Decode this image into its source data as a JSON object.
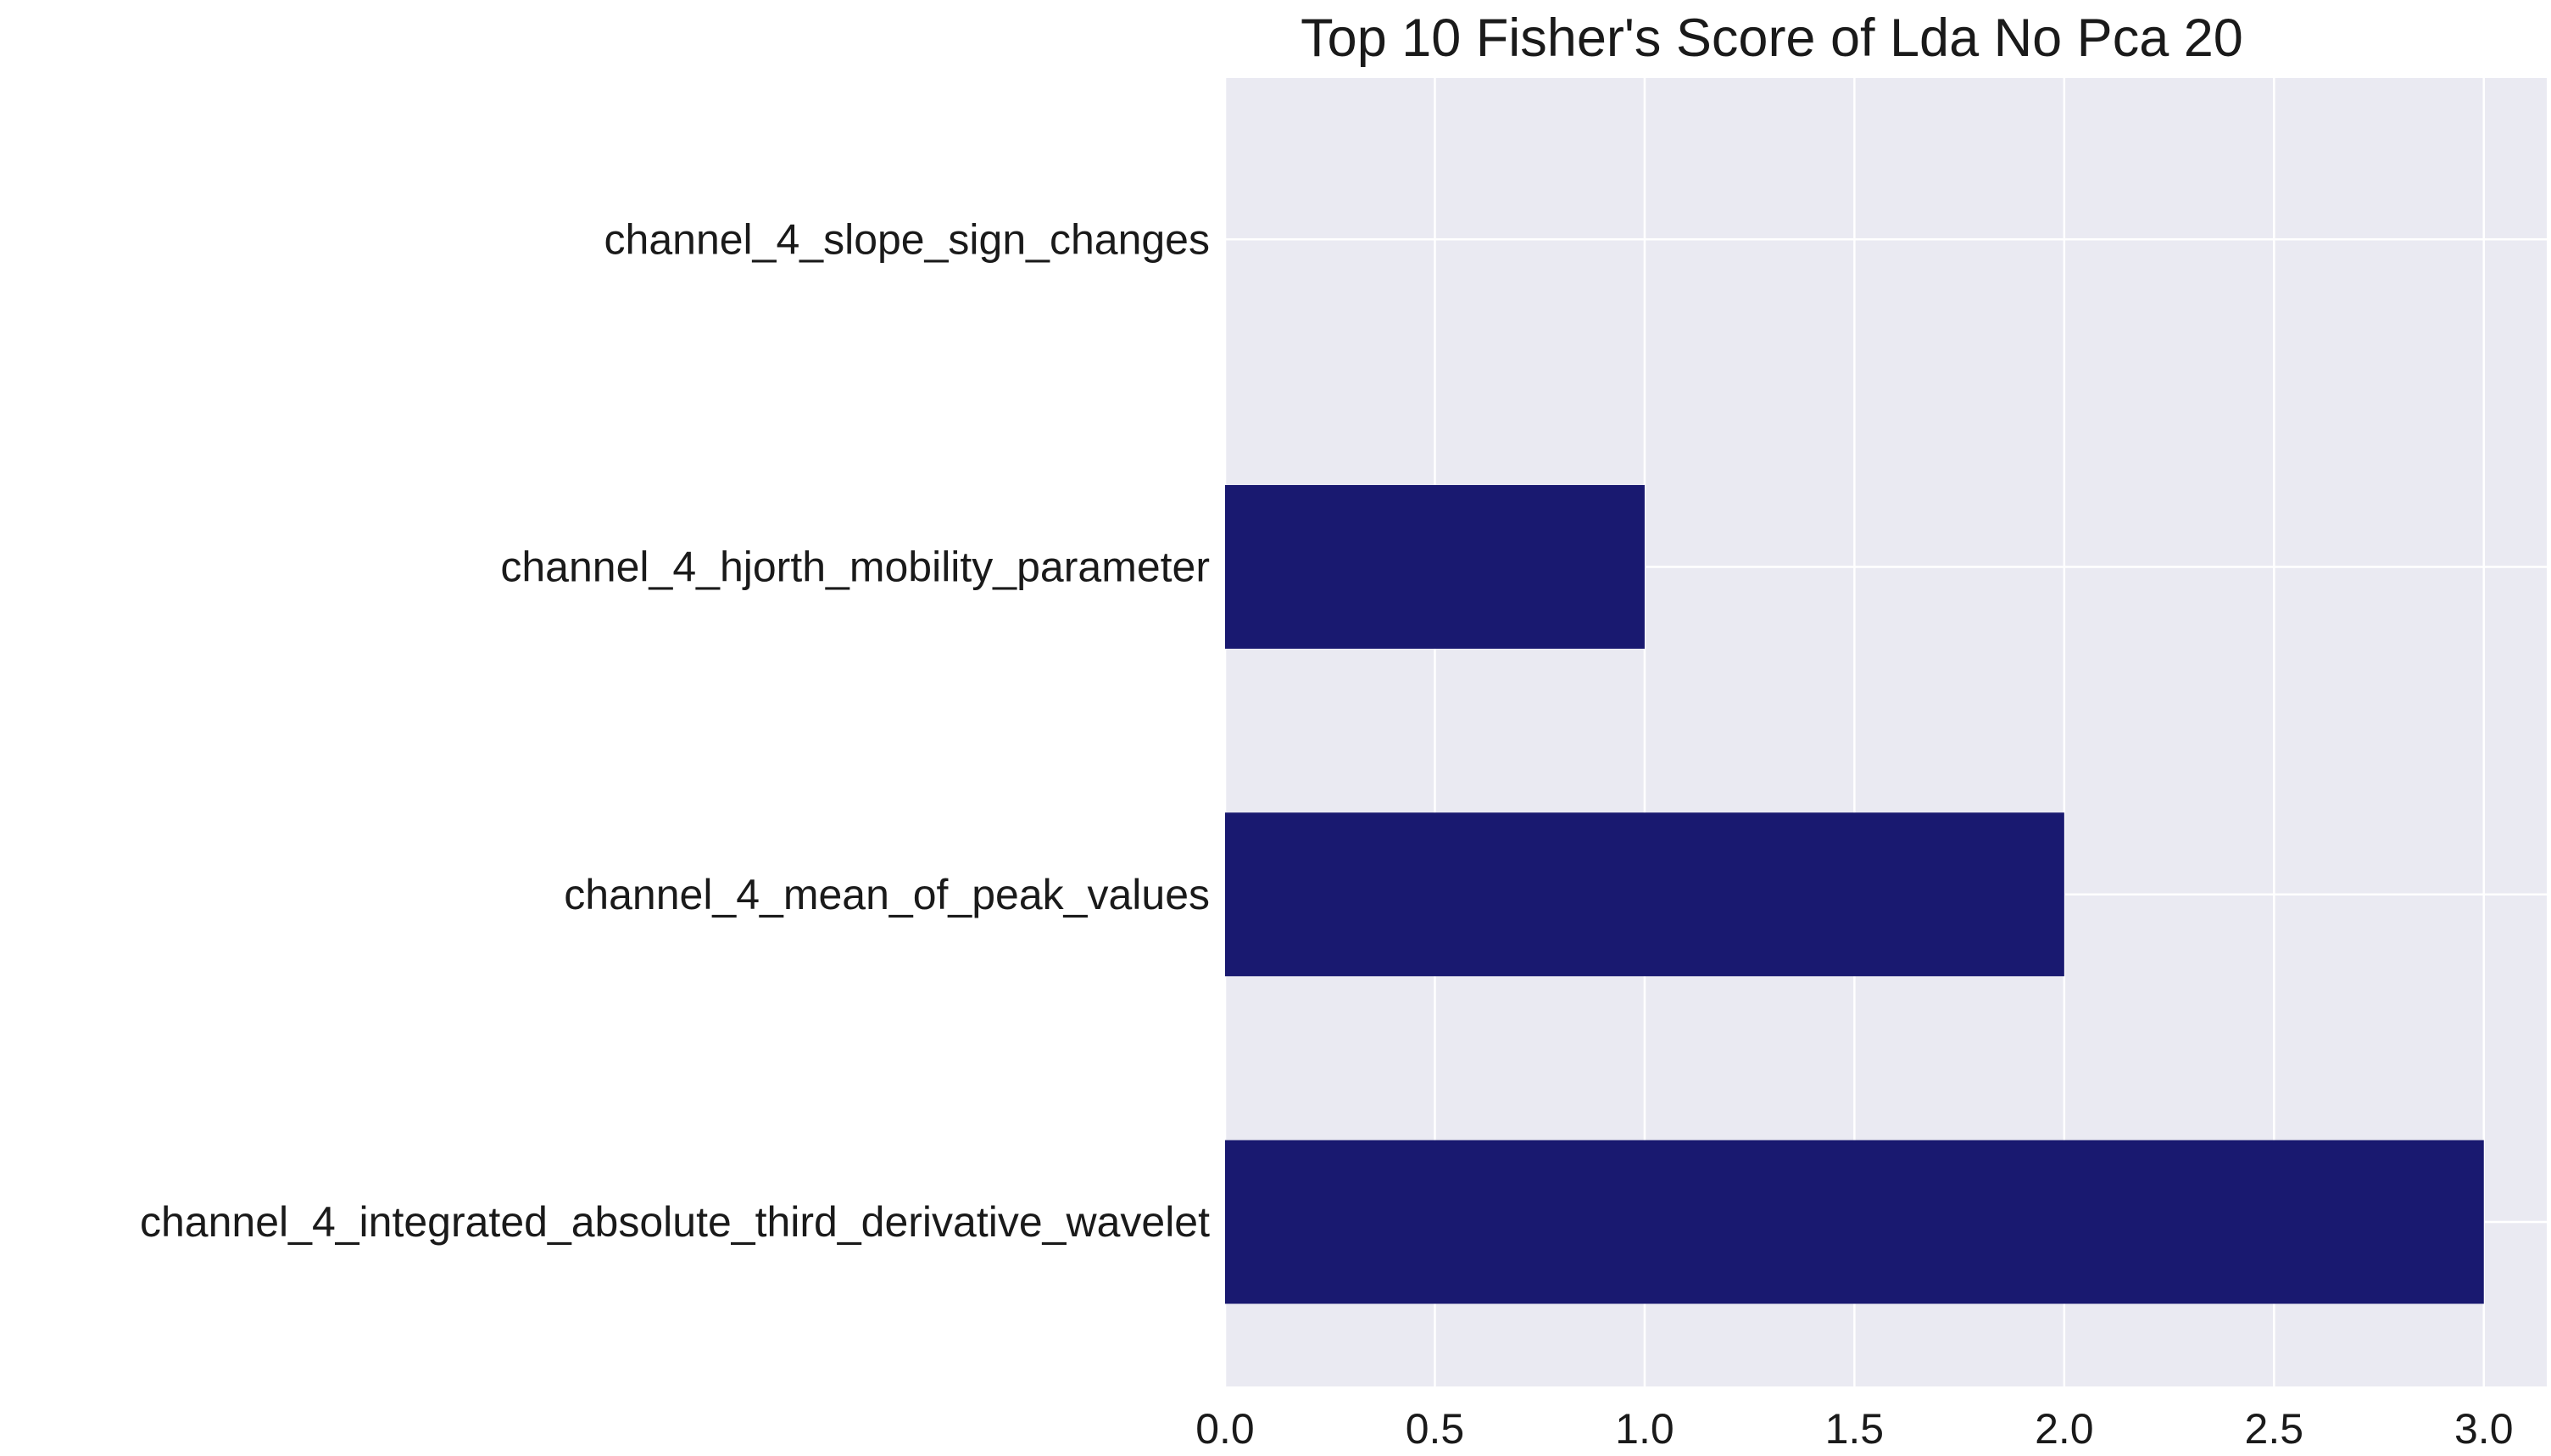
{
  "chart_data": {
    "type": "bar",
    "orientation": "horizontal",
    "title": "Top 10 Fisher's Score of Lda No Pca 20",
    "xlabel": "",
    "ylabel": "",
    "categories": [
      "channel_4_integrated_absolute_third_derivative_wavelet",
      "channel_4_mean_of_peak_values",
      "channel_4_hjorth_mobility_parameter",
      "channel_4_slope_sign_changes"
    ],
    "values": [
      3.0,
      2.0,
      1.0,
      0.0
    ],
    "xlim": [
      0.0,
      3.15
    ],
    "xticks": [
      0.0,
      0.5,
      1.0,
      1.5,
      2.0,
      2.5,
      3.0
    ],
    "xtick_labels": [
      "0.0",
      "0.5",
      "1.0",
      "1.5",
      "2.0",
      "2.5",
      "3.0"
    ],
    "bar_color": "#191970",
    "grid": true,
    "background": "#eaeaf2"
  }
}
